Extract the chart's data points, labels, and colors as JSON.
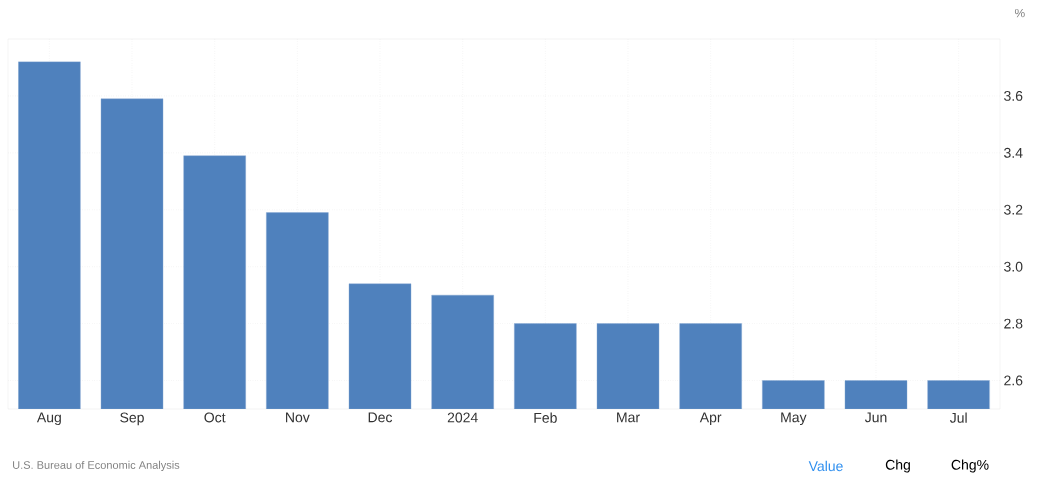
{
  "chart_data": {
    "type": "bar",
    "ylabel": "%",
    "categories": [
      "Aug",
      "Sep",
      "Oct",
      "Nov",
      "Dec",
      "2024",
      "Feb",
      "Mar",
      "Apr",
      "May",
      "Jun",
      "Jul"
    ],
    "values": [
      3.72,
      3.59,
      3.39,
      3.19,
      2.94,
      2.9,
      2.8,
      2.8,
      2.8,
      2.6,
      2.6,
      2.6
    ],
    "color": "#4f81bd",
    "ylim": [
      2.5,
      3.8
    ],
    "yticks": [
      2.6,
      2.8,
      {
        "value": 3.0,
        "label": "3.0"
      },
      3.2,
      3.4,
      3.6
    ],
    "grid": true,
    "annotations": [
      "U.S. Bureau of Economic Analysis",
      "Value",
      "Chg",
      "Chg%"
    ]
  }
}
